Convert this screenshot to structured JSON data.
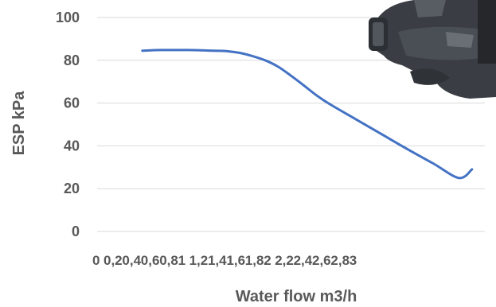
{
  "chart_data": {
    "type": "line",
    "title": "",
    "xlabel": "Water flow m3/h",
    "ylabel": "ESP kPa",
    "xlim": [
      0,
      3
    ],
    "ylim": [
      0,
      100
    ],
    "x_ticks": [
      {
        "value": 0,
        "label": "0"
      },
      {
        "value": 0.2,
        "label": "0,2"
      },
      {
        "value": 0.4,
        "label": "0,4"
      },
      {
        "value": 0.6,
        "label": "0,6"
      },
      {
        "value": 0.8,
        "label": "0,8"
      },
      {
        "value": 1,
        "label": "1"
      },
      {
        "value": 1.2,
        "label": "1,2"
      },
      {
        "value": 1.4,
        "label": "1,4"
      },
      {
        "value": 1.6,
        "label": "1,6"
      },
      {
        "value": 1.8,
        "label": "1,8"
      },
      {
        "value": 2,
        "label": "2"
      },
      {
        "value": 2.2,
        "label": "2,2"
      },
      {
        "value": 2.4,
        "label": "2,4"
      },
      {
        "value": 2.6,
        "label": "2,6"
      },
      {
        "value": 2.8,
        "label": "2,8"
      },
      {
        "value": 3,
        "label": "3"
      }
    ],
    "y_ticks": [
      0,
      20,
      40,
      60,
      80,
      100
    ],
    "grid": "horizontal",
    "series": [
      {
        "color": "#4472c4",
        "x": [
          0.35,
          0.5,
          0.7,
          0.9,
          1.0,
          1.1,
          1.2,
          1.3,
          1.4,
          1.5,
          1.6,
          1.7,
          1.8,
          2.0,
          2.2,
          2.4,
          2.6,
          2.8,
          2.9
        ],
        "y": [
          84.5,
          84.8,
          84.8,
          84.5,
          84.3,
          83.5,
          82.0,
          80.0,
          77.0,
          72.8,
          68.2,
          63.5,
          59.5,
          52.5,
          45.5,
          38.5,
          31.8,
          25.0,
          29.0
        ]
      }
    ]
  },
  "decorations": {
    "pump_image": "circulation-pump-photo"
  }
}
